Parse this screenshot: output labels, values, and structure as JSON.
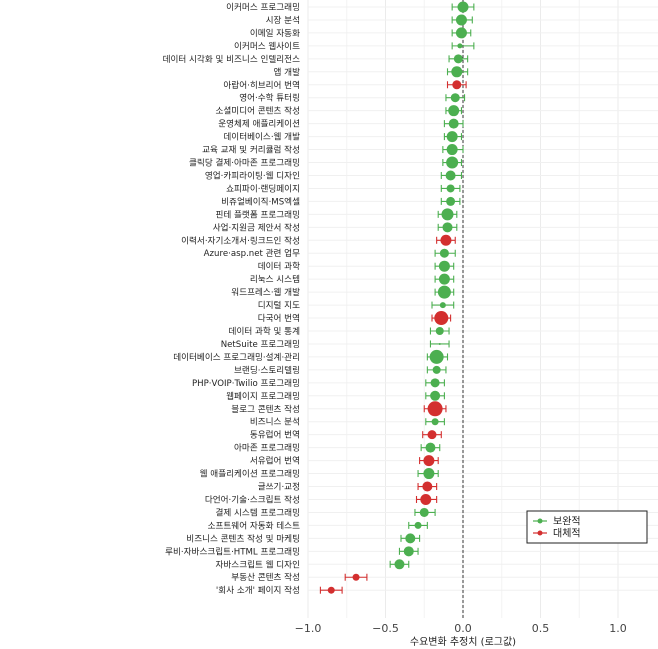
{
  "chart_data": {
    "type": "scatter",
    "subtype": "forest-plot",
    "xlabel": "수요변화 추정치 (로그값)",
    "ylabel": "",
    "xlim": [
      -1.0,
      1.2
    ],
    "x_ticks": [
      -1.0,
      -0.5,
      0.0,
      0.5,
      1.0
    ],
    "x_tick_labels": [
      "−1.0",
      "−0.5",
      "0.0",
      "0.5",
      "1.0"
    ],
    "reference_line": 0,
    "grid": true,
    "legend_position": "right",
    "legend": [
      {
        "name": "보완적",
        "color": "#4caf50"
      },
      {
        "name": "대체적",
        "color": "#d32f2f"
      }
    ],
    "points": [
      {
        "label": "이커머스 프로그래밍",
        "est": 0.0,
        "lo": -0.07,
        "hi": 0.07,
        "group": "보완적",
        "size": 5.5
      },
      {
        "label": "시장 분석",
        "est": -0.01,
        "lo": -0.07,
        "hi": 0.06,
        "group": "보완적",
        "size": 5.5
      },
      {
        "label": "이메일 자동화",
        "est": -0.01,
        "lo": -0.07,
        "hi": 0.05,
        "group": "보완적",
        "size": 5.5
      },
      {
        "label": "이커머스 웹사이트",
        "est": -0.02,
        "lo": -0.07,
        "hi": 0.07,
        "group": "보완적",
        "size": 2.5
      },
      {
        "label": "데이터 시각화 및 비즈니스 인텔리전스",
        "est": -0.03,
        "lo": -0.09,
        "hi": 0.03,
        "group": "보완적",
        "size": 4.5
      },
      {
        "label": "앱 개발",
        "est": -0.04,
        "lo": -0.1,
        "hi": 0.03,
        "group": "보완적",
        "size": 5.5
      },
      {
        "label": "아랍어·히브리어 번역",
        "est": -0.04,
        "lo": -0.1,
        "hi": 0.02,
        "group": "대체적",
        "size": 4.5
      },
      {
        "label": "영어·수학 튜터링",
        "est": -0.05,
        "lo": -0.11,
        "hi": 0.01,
        "group": "보완적",
        "size": 4.5
      },
      {
        "label": "소셜미디어 콘텐츠 작성",
        "est": -0.06,
        "lo": -0.11,
        "hi": -0.01,
        "group": "보완적",
        "size": 5.5
      },
      {
        "label": "운영체제 애플리케이션",
        "est": -0.06,
        "lo": -0.12,
        "hi": 0.0,
        "group": "보완적",
        "size": 5.0
      },
      {
        "label": "데이터베이스·웹 개발",
        "est": -0.07,
        "lo": -0.12,
        "hi": -0.01,
        "group": "보완적",
        "size": 5.5
      },
      {
        "label": "교육 교재 및 커리큘럼 작성",
        "est": -0.07,
        "lo": -0.13,
        "hi": 0.0,
        "group": "보완적",
        "size": 5.5
      },
      {
        "label": "클릭당 결제·아마존 프로그래밍",
        "est": -0.07,
        "lo": -0.13,
        "hi": -0.01,
        "group": "보완적",
        "size": 6.0
      },
      {
        "label": "영업·카피라이팅·웹 디자인",
        "est": -0.08,
        "lo": -0.14,
        "hi": -0.01,
        "group": "보완적",
        "size": 5.0
      },
      {
        "label": "쇼피파이·랜딩페이지",
        "est": -0.08,
        "lo": -0.14,
        "hi": -0.02,
        "group": "보완적",
        "size": 4.0
      },
      {
        "label": "비쥬얼베이직·MS엑셀",
        "est": -0.08,
        "lo": -0.14,
        "hi": -0.02,
        "group": "보완적",
        "size": 4.5
      },
      {
        "label": "핀테 플랫폼 프로그래밍",
        "est": -0.1,
        "lo": -0.16,
        "hi": -0.04,
        "group": "보완적",
        "size": 6.0
      },
      {
        "label": "사업·지원금 제안서 작성",
        "est": -0.1,
        "lo": -0.16,
        "hi": -0.04,
        "group": "보완적",
        "size": 5.0
      },
      {
        "label": "이력서·자기소개서·링크드인 작성",
        "est": -0.11,
        "lo": -0.17,
        "hi": -0.05,
        "group": "대체적",
        "size": 5.5
      },
      {
        "label": "Azure·asp.net 관련 업무",
        "est": -0.12,
        "lo": -0.18,
        "hi": -0.05,
        "group": "보완적",
        "size": 4.5
      },
      {
        "label": "데이터 과학",
        "est": -0.12,
        "lo": -0.18,
        "hi": -0.06,
        "group": "보완적",
        "size": 5.5
      },
      {
        "label": "리눅스 시스템",
        "est": -0.12,
        "lo": -0.18,
        "hi": -0.06,
        "group": "보완적",
        "size": 5.5
      },
      {
        "label": "워드프레스·웹 개발",
        "est": -0.12,
        "lo": -0.18,
        "hi": -0.06,
        "group": "보완적",
        "size": 6.5
      },
      {
        "label": "디지털 지도",
        "est": -0.13,
        "lo": -0.2,
        "hi": -0.06,
        "group": "보완적",
        "size": 3.0
      },
      {
        "label": "다국어 번역",
        "est": -0.14,
        "lo": -0.2,
        "hi": -0.08,
        "group": "대체적",
        "size": 7.0
      },
      {
        "label": "데이터 과학 및 통계",
        "est": -0.15,
        "lo": -0.21,
        "hi": -0.09,
        "group": "보완적",
        "size": 4.0
      },
      {
        "label": "NetSuite 프로그래밍",
        "est": -0.15,
        "lo": -0.21,
        "hi": -0.09,
        "group": "보완적",
        "size": 1.0
      },
      {
        "label": "데이터베이스 프로그래밍·설계·관리",
        "est": -0.17,
        "lo": -0.23,
        "hi": -0.1,
        "group": "보완적",
        "size": 7.0
      },
      {
        "label": "브랜딩·스토리텔링",
        "est": -0.17,
        "lo": -0.23,
        "hi": -0.11,
        "group": "보완적",
        "size": 4.0
      },
      {
        "label": "PHP·VOIP·Twilio 프로그래밍",
        "est": -0.18,
        "lo": -0.24,
        "hi": -0.12,
        "group": "보완적",
        "size": 4.5
      },
      {
        "label": "웹페이지 프로그래밍",
        "est": -0.18,
        "lo": -0.24,
        "hi": -0.12,
        "group": "보완적",
        "size": 5.0
      },
      {
        "label": "블로그 콘텐츠 작성",
        "est": -0.18,
        "lo": -0.25,
        "hi": -0.11,
        "group": "대체적",
        "size": 7.5
      },
      {
        "label": "비즈니스 분석",
        "est": -0.18,
        "lo": -0.24,
        "hi": -0.12,
        "group": "보완적",
        "size": 3.5
      },
      {
        "label": "동유럽어 번역",
        "est": -0.2,
        "lo": -0.26,
        "hi": -0.14,
        "group": "대체적",
        "size": 4.5
      },
      {
        "label": "아마존 프로그래밍",
        "est": -0.21,
        "lo": -0.27,
        "hi": -0.15,
        "group": "보완적",
        "size": 5.0
      },
      {
        "label": "서유럽어 번역",
        "est": -0.22,
        "lo": -0.28,
        "hi": -0.16,
        "group": "대체적",
        "size": 5.5
      },
      {
        "label": "웹 애플리케이션 프로그래밍",
        "est": -0.22,
        "lo": -0.29,
        "hi": -0.16,
        "group": "보완적",
        "size": 5.5
      },
      {
        "label": "글쓰기·교정",
        "est": -0.23,
        "lo": -0.29,
        "hi": -0.17,
        "group": "대체적",
        "size": 5.0
      },
      {
        "label": "다언어·기술·스크립트 작성",
        "est": -0.24,
        "lo": -0.3,
        "hi": -0.17,
        "group": "대체적",
        "size": 5.5
      },
      {
        "label": "결제 시스템 프로그래밍",
        "est": -0.25,
        "lo": -0.31,
        "hi": -0.18,
        "group": "보완적",
        "size": 4.5
      },
      {
        "label": "소프트웨어 자동화 테스트",
        "est": -0.29,
        "lo": -0.35,
        "hi": -0.23,
        "group": "보완적",
        "size": 3.5
      },
      {
        "label": "비즈니스 콘텐츠 작성 및 마케팅",
        "est": -0.34,
        "lo": -0.4,
        "hi": -0.28,
        "group": "보완적",
        "size": 5.0
      },
      {
        "label": "루비·자바스크립트·HTML 프로그래밍",
        "est": -0.35,
        "lo": -0.41,
        "hi": -0.29,
        "group": "보완적",
        "size": 5.0
      },
      {
        "label": "자바스크립트 웹 디자인",
        "est": -0.41,
        "lo": -0.47,
        "hi": -0.35,
        "group": "보완적",
        "size": 5.0
      },
      {
        "label": "부동산 콘텐츠 작성",
        "est": -0.69,
        "lo": -0.76,
        "hi": -0.62,
        "group": "대체적",
        "size": 3.5
      },
      {
        "label": "'회사 소개' 페이지 작성",
        "est": -0.85,
        "lo": -0.92,
        "hi": -0.78,
        "group": "대체적",
        "size": 3.5
      }
    ]
  }
}
